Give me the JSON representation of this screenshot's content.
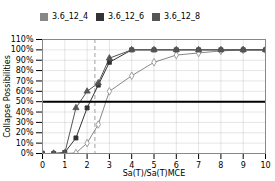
{
  "chart_data": {
    "type": "line",
    "xlabel": "Sa(T)/Sa(T)MCE",
    "ylabel": "Collapse Possibilities",
    "x": [
      0.0,
      0.5,
      1.0,
      1.5,
      2.0,
      2.5,
      3.0,
      4.0,
      5.0,
      6.0,
      7.0,
      8.0,
      9.0,
      10.0
    ],
    "series": [
      {
        "name": "3.6_12_4",
        "color": "#888888",
        "marker": "diamond-open",
        "values": [
          0.0,
          0.0,
          0.0,
          0.005,
          0.1,
          0.28,
          0.6,
          0.75,
          0.88,
          0.95,
          0.97,
          0.99,
          1.0,
          1.0
        ]
      },
      {
        "name": "3.6_12_6",
        "color": "#333333",
        "marker": "square",
        "values": [
          0.0,
          0.0,
          0.01,
          0.15,
          0.44,
          0.66,
          0.88,
          1.0,
          1.0,
          1.0,
          1.0,
          1.0,
          1.0,
          1.0
        ]
      },
      {
        "name": "3.6_12_8",
        "color": "#555555",
        "marker": "triangle",
        "values": [
          0.0,
          0.0,
          0.005,
          0.44,
          0.6,
          0.68,
          0.92,
          1.0,
          1.0,
          1.0,
          1.0,
          1.0,
          1.0,
          1.0
        ]
      }
    ],
    "xlim": [
      0.0,
      10.0
    ],
    "ylim": [
      0.0,
      1.1
    ],
    "xticks": [
      0,
      1,
      2,
      3,
      4,
      5,
      6,
      7,
      8,
      9,
      10
    ],
    "yticks": [
      {
        "value": 0.0,
        "label": "0%"
      },
      {
        "value": 0.1,
        "label": "10%"
      },
      {
        "value": 0.2,
        "label": "20%"
      },
      {
        "value": 0.3,
        "label": "30%"
      },
      {
        "value": 0.4,
        "label": "40%"
      },
      {
        "value": 0.5,
        "label": "50%"
      },
      {
        "value": 0.6,
        "label": "60%"
      },
      {
        "value": 0.7,
        "label": "70%"
      },
      {
        "value": 0.8,
        "label": "80%"
      },
      {
        "value": 0.9,
        "label": "90%"
      },
      {
        "value": 1.0,
        "label": "100%"
      },
      {
        "value": 1.1,
        "label": "110%"
      }
    ],
    "hline": 0.5,
    "vline": 2.35,
    "grid": true,
    "legend": "top"
  }
}
